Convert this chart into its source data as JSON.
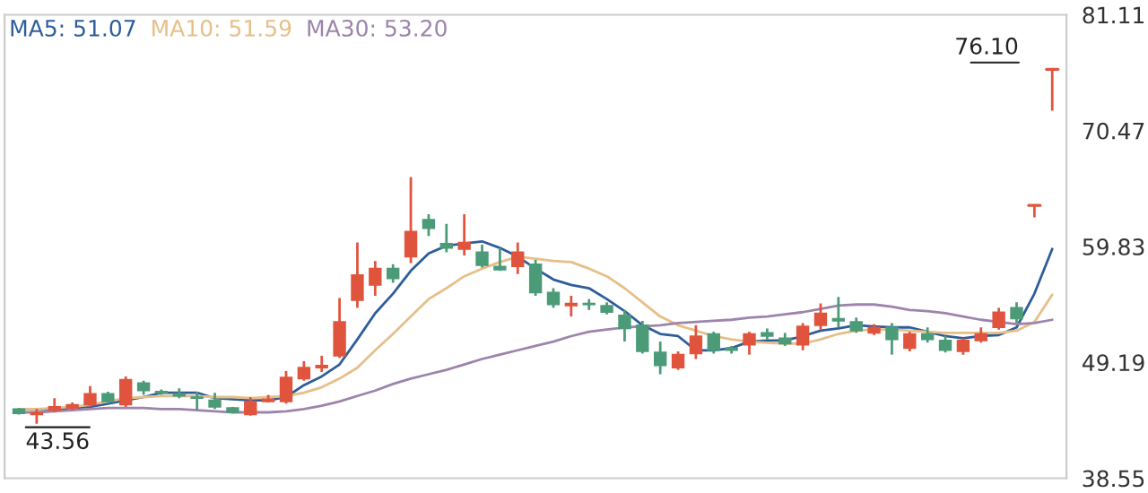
{
  "chart_data": {
    "type": "candlestick",
    "categories": [
      null,
      null,
      null,
      null,
      null,
      null,
      null,
      null,
      null,
      null,
      null,
      null,
      null,
      null,
      null,
      null,
      null,
      null,
      null,
      null,
      null,
      null,
      null,
      null,
      null,
      null,
      null,
      null,
      null,
      null,
      null,
      null,
      null,
      null,
      null,
      null,
      null,
      null,
      null,
      null,
      null,
      null,
      null,
      null,
      null,
      null,
      null,
      null,
      null,
      null,
      null,
      null,
      null,
      null,
      null,
      null,
      null,
      null,
      null
    ],
    "ohlc": [
      [
        44.9,
        45.0,
        44.4,
        44.5
      ],
      [
        44.4,
        44.9,
        43.56,
        44.6
      ],
      [
        44.8,
        45.9,
        44.6,
        45.1
      ],
      [
        45.0,
        45.5,
        44.8,
        45.3
      ],
      [
        45.3,
        47.0,
        45.1,
        46.3
      ],
      [
        46.3,
        46.5,
        45.4,
        45.6
      ],
      [
        45.3,
        47.9,
        45.1,
        47.6
      ],
      [
        47.3,
        47.5,
        46.2,
        46.6
      ],
      [
        46.5,
        46.7,
        46.2,
        46.4
      ],
      [
        46.3,
        46.8,
        45.9,
        46.1
      ],
      [
        46.0,
        46.5,
        44.8,
        45.9
      ],
      [
        45.7,
        46.4,
        44.9,
        45.1
      ],
      [
        45.0,
        45.1,
        44.5,
        44.6
      ],
      [
        44.4,
        46.0,
        44.3,
        45.6
      ],
      [
        45.6,
        46.2,
        45.5,
        45.8
      ],
      [
        45.6,
        48.4,
        45.4,
        47.8
      ],
      [
        47.7,
        49.3,
        47.5,
        48.7
      ],
      [
        48.7,
        49.8,
        48.3,
        48.9
      ],
      [
        49.8,
        55.1,
        49.6,
        52.9
      ],
      [
        54.9,
        60.2,
        54.2,
        57.2
      ],
      [
        56.3,
        58.5,
        55.3,
        57.8
      ],
      [
        57.8,
        58.2,
        56.5,
        56.9
      ],
      [
        58.9,
        66.2,
        58.3,
        61.2
      ],
      [
        62.3,
        62.8,
        60.8,
        61.5
      ],
      [
        60.1,
        61.9,
        59.3,
        59.7
      ],
      [
        59.6,
        62.8,
        59.0,
        60.2
      ],
      [
        59.3,
        60.0,
        57.9,
        58.1
      ],
      [
        58.0,
        59.7,
        57.6,
        57.7
      ],
      [
        58.0,
        60.2,
        57.3,
        59.3
      ],
      [
        58.2,
        58.6,
        55.3,
        55.6
      ],
      [
        55.6,
        56.0,
        54.2,
        54.5
      ],
      [
        54.4,
        55.3,
        53.4,
        54.6
      ],
      [
        54.6,
        55.0,
        54.0,
        54.5
      ],
      [
        54.4,
        54.7,
        53.6,
        53.8
      ],
      [
        53.5,
        54.0,
        51.1,
        52.3
      ],
      [
        52.6,
        53.0,
        50.0,
        50.2
      ],
      [
        50.1,
        51.1,
        48.1,
        48.9
      ],
      [
        48.7,
        50.2,
        48.5,
        49.9
      ],
      [
        50.0,
        52.6,
        49.5,
        51.6
      ],
      [
        51.8,
        52.0,
        50.0,
        50.3
      ],
      [
        50.5,
        50.7,
        50.0,
        50.3
      ],
      [
        50.8,
        52.0,
        49.9,
        51.8
      ],
      [
        51.9,
        52.3,
        51.3,
        51.6
      ],
      [
        51.4,
        51.9,
        50.7,
        50.9
      ],
      [
        50.8,
        52.8,
        50.3,
        52.5
      ],
      [
        52.6,
        54.6,
        52.2,
        53.7
      ],
      [
        53.2,
        55.2,
        52.4,
        53.0
      ],
      [
        52.9,
        53.3,
        51.9,
        52.1
      ],
      [
        51.9,
        52.7,
        51.7,
        52.4
      ],
      [
        52.4,
        52.8,
        49.9,
        51.3
      ],
      [
        50.5,
        52.0,
        50.2,
        51.8
      ],
      [
        51.8,
        52.4,
        51.0,
        51.3
      ],
      [
        51.2,
        51.6,
        50.1,
        50.3
      ],
      [
        50.2,
        51.4,
        49.9,
        51.2
      ],
      [
        51.2,
        52.4,
        51.0,
        51.8
      ],
      [
        52.4,
        54.2,
        52.2,
        53.8
      ],
      [
        54.2,
        54.7,
        52.8,
        53.2
      ],
      [
        63.6,
        63.6,
        62.5,
        63.6
      ],
      [
        76.1,
        76.1,
        72.3,
        76.1
      ]
    ],
    "colors": [
      "#4b9b78",
      "#e0543e",
      "#e0543e",
      "#e0543e",
      "#e0543e",
      "#4b9b78",
      "#e0543e",
      "#4b9b78",
      "#4b9b78",
      "#4b9b78",
      "#4b9b78",
      "#4b9b78",
      "#4b9b78",
      "#e0543e",
      "#e0543e",
      "#e0543e",
      "#e0543e",
      "#e0543e",
      "#e0543e",
      "#e0543e",
      "#e0543e",
      "#4b9b78",
      "#e0543e",
      "#4b9b78",
      "#4b9b78",
      "#e0543e",
      "#4b9b78",
      "#4b9b78",
      "#e0543e",
      "#4b9b78",
      "#4b9b78",
      "#e0543e",
      "#4b9b78",
      "#4b9b78",
      "#4b9b78",
      "#4b9b78",
      "#4b9b78",
      "#e0543e",
      "#e0543e",
      "#4b9b78",
      "#4b9b78",
      "#e0543e",
      "#4b9b78",
      "#4b9b78",
      "#e0543e",
      "#e0543e",
      "#4b9b78",
      "#4b9b78",
      "#e0543e",
      "#4b9b78",
      "#e0543e",
      "#4b9b78",
      "#4b9b78",
      "#e0543e",
      "#e0543e",
      "#e0543e",
      "#4b9b78",
      "#e0543e",
      "#e0543e"
    ],
    "series": [
      {
        "name": "MA5: 51.07",
        "type": "line",
        "color": "#2e5d9a",
        "values": [
          44.9,
          44.9,
          44.9,
          45.0,
          45.1,
          45.4,
          45.7,
          46.0,
          46.4,
          46.4,
          46.4,
          45.9,
          45.8,
          45.7,
          45.7,
          46.0,
          47.1,
          47.9,
          49.0,
          51.3,
          53.7,
          55.5,
          57.6,
          59.2,
          59.9,
          60.1,
          60.3,
          59.7,
          58.9,
          57.8,
          56.8,
          56.3,
          56.0,
          55.0,
          53.9,
          52.6,
          51.8,
          51.6,
          50.3,
          50.3,
          50.5,
          51.1,
          51.2,
          51.2,
          51.6,
          52.1,
          52.3,
          52.6,
          52.5,
          52.4,
          52.4,
          52.0,
          51.6,
          51.4,
          51.6,
          51.7,
          52.4,
          55.5,
          59.6
        ]
      },
      {
        "name": "MA10: 51.59",
        "type": "line",
        "color": "#e6bf88",
        "values": [
          44.9,
          44.9,
          45.0,
          45.1,
          45.3,
          45.6,
          45.9,
          46.0,
          46.1,
          46.1,
          46.1,
          46.0,
          46.0,
          45.9,
          46.0,
          46.1,
          46.4,
          46.9,
          47.7,
          48.7,
          50.3,
          51.8,
          53.4,
          55.0,
          56.0,
          57.1,
          57.8,
          58.4,
          58.9,
          58.7,
          58.5,
          58.4,
          57.8,
          57.1,
          56.0,
          54.7,
          53.4,
          52.6,
          52.1,
          51.6,
          51.3,
          51.1,
          51.0,
          50.9,
          50.9,
          51.3,
          51.8,
          52.1,
          52.2,
          52.2,
          52.1,
          52.0,
          51.9,
          51.9,
          51.9,
          51.9,
          52.1,
          52.9,
          55.4
        ]
      },
      {
        "name": "MA30: 53.20",
        "type": "line",
        "color": "#9c84ab",
        "values": [
          44.6,
          44.6,
          44.7,
          44.8,
          44.9,
          45.0,
          45.0,
          45.0,
          44.9,
          44.9,
          44.8,
          44.7,
          44.6,
          44.6,
          44.6,
          44.7,
          44.9,
          45.2,
          45.6,
          46.1,
          46.6,
          47.2,
          47.7,
          48.1,
          48.5,
          49.0,
          49.5,
          49.9,
          50.3,
          50.7,
          51.1,
          51.6,
          52.0,
          52.2,
          52.4,
          52.5,
          52.6,
          52.8,
          52.9,
          53.0,
          53.1,
          53.3,
          53.4,
          53.6,
          53.8,
          54.1,
          54.4,
          54.5,
          54.5,
          54.3,
          54.0,
          53.9,
          53.7,
          53.4,
          53.1,
          52.9,
          52.7,
          52.8,
          53.1
        ]
      }
    ],
    "ylim": [
      38.55,
      81.11
    ],
    "yticks": [
      38.55,
      49.19,
      59.83,
      70.47,
      81.11
    ],
    "annotations": [
      "76.10",
      "43.56"
    ],
    "legend": "top left",
    "tick_labels": "y"
  }
}
